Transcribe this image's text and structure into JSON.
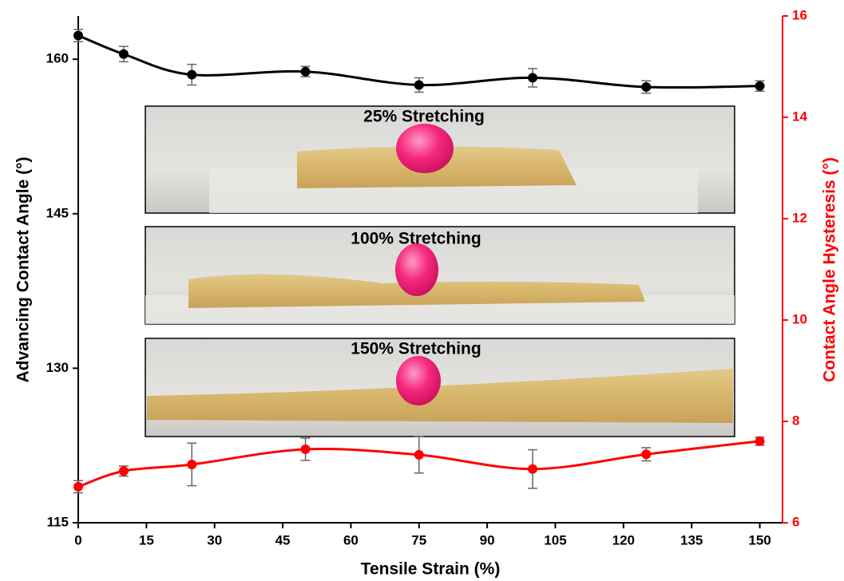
{
  "chart_data": {
    "type": "line",
    "xlabel": "Tensile Strain (%)",
    "ylabel": "Advancing Contact Angle (°)",
    "y2label": "Contact Angle Hysteresis (°)",
    "x": [
      0,
      10,
      25,
      50,
      75,
      100,
      125,
      150
    ],
    "xlim": [
      0,
      155
    ],
    "xticks": [
      0,
      15,
      30,
      45,
      60,
      75,
      90,
      105,
      120,
      135,
      150
    ],
    "ylim": [
      115,
      164.2
    ],
    "yticks": [
      115,
      130,
      145,
      160
    ],
    "y2lim": [
      6,
      16
    ],
    "y2ticks": [
      6,
      8,
      10,
      12,
      14,
      16
    ],
    "series": [
      {
        "color": "#000000",
        "values": [
          162.3,
          160.5,
          158.5,
          158.8,
          157.5,
          158.2,
          157.3,
          157.4
        ],
        "errors": [
          0.6,
          0.75,
          1.0,
          0.5,
          0.7,
          0.9,
          0.6,
          0.5
        ]
      },
      {
        "color": "#ff0000",
        "axis": "y2",
        "values": [
          6.71,
          7.02,
          7.15,
          7.45,
          7.34,
          7.06,
          7.35,
          7.61
        ],
        "errors": [
          0.12,
          0.1,
          0.42,
          0.22,
          0.36,
          0.38,
          0.13,
          0.08
        ]
      }
    ],
    "insets": [
      {
        "label": "25% Stretching"
      },
      {
        "label": "100% Stretching"
      },
      {
        "label": "150% Stretching"
      }
    ]
  }
}
